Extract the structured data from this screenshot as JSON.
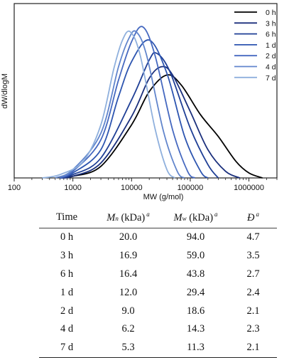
{
  "chart_data": [
    {
      "type": "line",
      "xlabel": "MW (g/mol)",
      "ylabel": "dW/dlogM",
      "xscale": "log",
      "xlim": [
        100,
        3000000
      ],
      "ylim": [
        0,
        1.05
      ],
      "x_ticks": [
        "100",
        "1000",
        "10000",
        "100000",
        "1000000"
      ],
      "x_tick_values": [
        100,
        1000,
        10000,
        100000,
        1000000
      ],
      "grid": false,
      "legend_position": "top-right",
      "series": [
        {
          "name": "0 h",
          "color": "#000000",
          "peak_mw": 40000,
          "peak_height": 0.62,
          "points": [
            [
              600,
              0.0
            ],
            [
              1000,
              0.01
            ],
            [
              3000,
              0.07
            ],
            [
              10000,
              0.32
            ],
            [
              20000,
              0.52
            ],
            [
              40000,
              0.62
            ],
            [
              70000,
              0.56
            ],
            [
              150000,
              0.38
            ],
            [
              300000,
              0.25
            ],
            [
              600000,
              0.1
            ],
            [
              1000000,
              0.03
            ],
            [
              1700000,
              0.0
            ]
          ]
        },
        {
          "name": "3 h",
          "color": "#1a2f7c",
          "peak_mw": 33000,
          "peak_height": 0.67,
          "points": [
            [
              600,
              0.0
            ],
            [
              1000,
              0.01
            ],
            [
              3000,
              0.09
            ],
            [
              10000,
              0.37
            ],
            [
              20000,
              0.6
            ],
            [
              33000,
              0.67
            ],
            [
              50000,
              0.62
            ],
            [
              100000,
              0.4
            ],
            [
              200000,
              0.17
            ],
            [
              400000,
              0.04
            ],
            [
              700000,
              0.0
            ]
          ]
        },
        {
          "name": "6 h",
          "color": "#1f3f96",
          "peak_mw": 27000,
          "peak_height": 0.75,
          "points": [
            [
              600,
              0.0
            ],
            [
              1000,
              0.02
            ],
            [
              3000,
              0.12
            ],
            [
              10000,
              0.47
            ],
            [
              20000,
              0.71
            ],
            [
              27000,
              0.75
            ],
            [
              45000,
              0.64
            ],
            [
              100000,
              0.3
            ],
            [
              200000,
              0.08
            ],
            [
              300000,
              0.0
            ]
          ]
        },
        {
          "name": "1 d",
          "color": "#2d55b0",
          "peak_mw": 20000,
          "peak_height": 0.83,
          "points": [
            [
              600,
              0.0
            ],
            [
              1000,
              0.03
            ],
            [
              3000,
              0.17
            ],
            [
              6000,
              0.49
            ],
            [
              10000,
              0.7
            ],
            [
              20000,
              0.83
            ],
            [
              40000,
              0.63
            ],
            [
              80000,
              0.25
            ],
            [
              150000,
              0.04
            ],
            [
              200000,
              0.0
            ]
          ]
        },
        {
          "name": "2 d",
          "color": "#4669c0",
          "peak_mw": 15500,
          "peak_height": 0.91,
          "points": [
            [
              600,
              0.0
            ],
            [
              1000,
              0.04
            ],
            [
              3000,
              0.23
            ],
            [
              6000,
              0.59
            ],
            [
              10000,
              0.82
            ],
            [
              15500,
              0.91
            ],
            [
              25000,
              0.74
            ],
            [
              50000,
              0.29
            ],
            [
              90000,
              0.04
            ],
            [
              120000,
              0.0
            ]
          ]
        },
        {
          "name": "4 d",
          "color": "#6185cc",
          "peak_mw": 12000,
          "peak_height": 0.88,
          "points": [
            [
              500,
              0.0
            ],
            [
              1000,
              0.05
            ],
            [
              3000,
              0.27
            ],
            [
              6000,
              0.67
            ],
            [
              9000,
              0.84
            ],
            [
              12000,
              0.88
            ],
            [
              18000,
              0.74
            ],
            [
              35000,
              0.28
            ],
            [
              60000,
              0.04
            ],
            [
              80000,
              0.0
            ]
          ]
        },
        {
          "name": "7 d",
          "color": "#8fb0dd",
          "peak_mw": 9500,
          "peak_height": 0.88,
          "points": [
            [
              300,
              0.0
            ],
            [
              600,
              0.02
            ],
            [
              1500,
              0.1
            ],
            [
              3000,
              0.32
            ],
            [
              5000,
              0.66
            ],
            [
              7000,
              0.83
            ],
            [
              9500,
              0.88
            ],
            [
              14000,
              0.74
            ],
            [
              25000,
              0.3
            ],
            [
              40000,
              0.05
            ],
            [
              55000,
              0.0
            ]
          ]
        }
      ]
    },
    {
      "type": "table",
      "columns": [
        "Time",
        "Mn (kDa) a",
        "Mw (kDa) a",
        "Đ a"
      ],
      "rows": [
        [
          "0 h",
          "20.0",
          "94.0",
          "4.7"
        ],
        [
          "3 h",
          "16.9",
          "59.0",
          "3.5"
        ],
        [
          "6 h",
          "16.4",
          "43.8",
          "2.7"
        ],
        [
          "1 d",
          "12.0",
          "29.4",
          "2.4"
        ],
        [
          "2 d",
          "9.0",
          "18.6",
          "2.1"
        ],
        [
          "4 d",
          "6.2",
          "14.3",
          "2.3"
        ],
        [
          "7 d",
          "5.3",
          "11.3",
          "2.1"
        ]
      ]
    }
  ],
  "table_header": {
    "time": "Time",
    "mn_symbol": "M",
    "mn_sub": "n",
    "mn_unit": " (kDa)",
    "mw_symbol": "M",
    "mw_sub": "w",
    "mw_unit": " (kDa)",
    "dispersity": "Đ",
    "footnote_mark": "a"
  }
}
